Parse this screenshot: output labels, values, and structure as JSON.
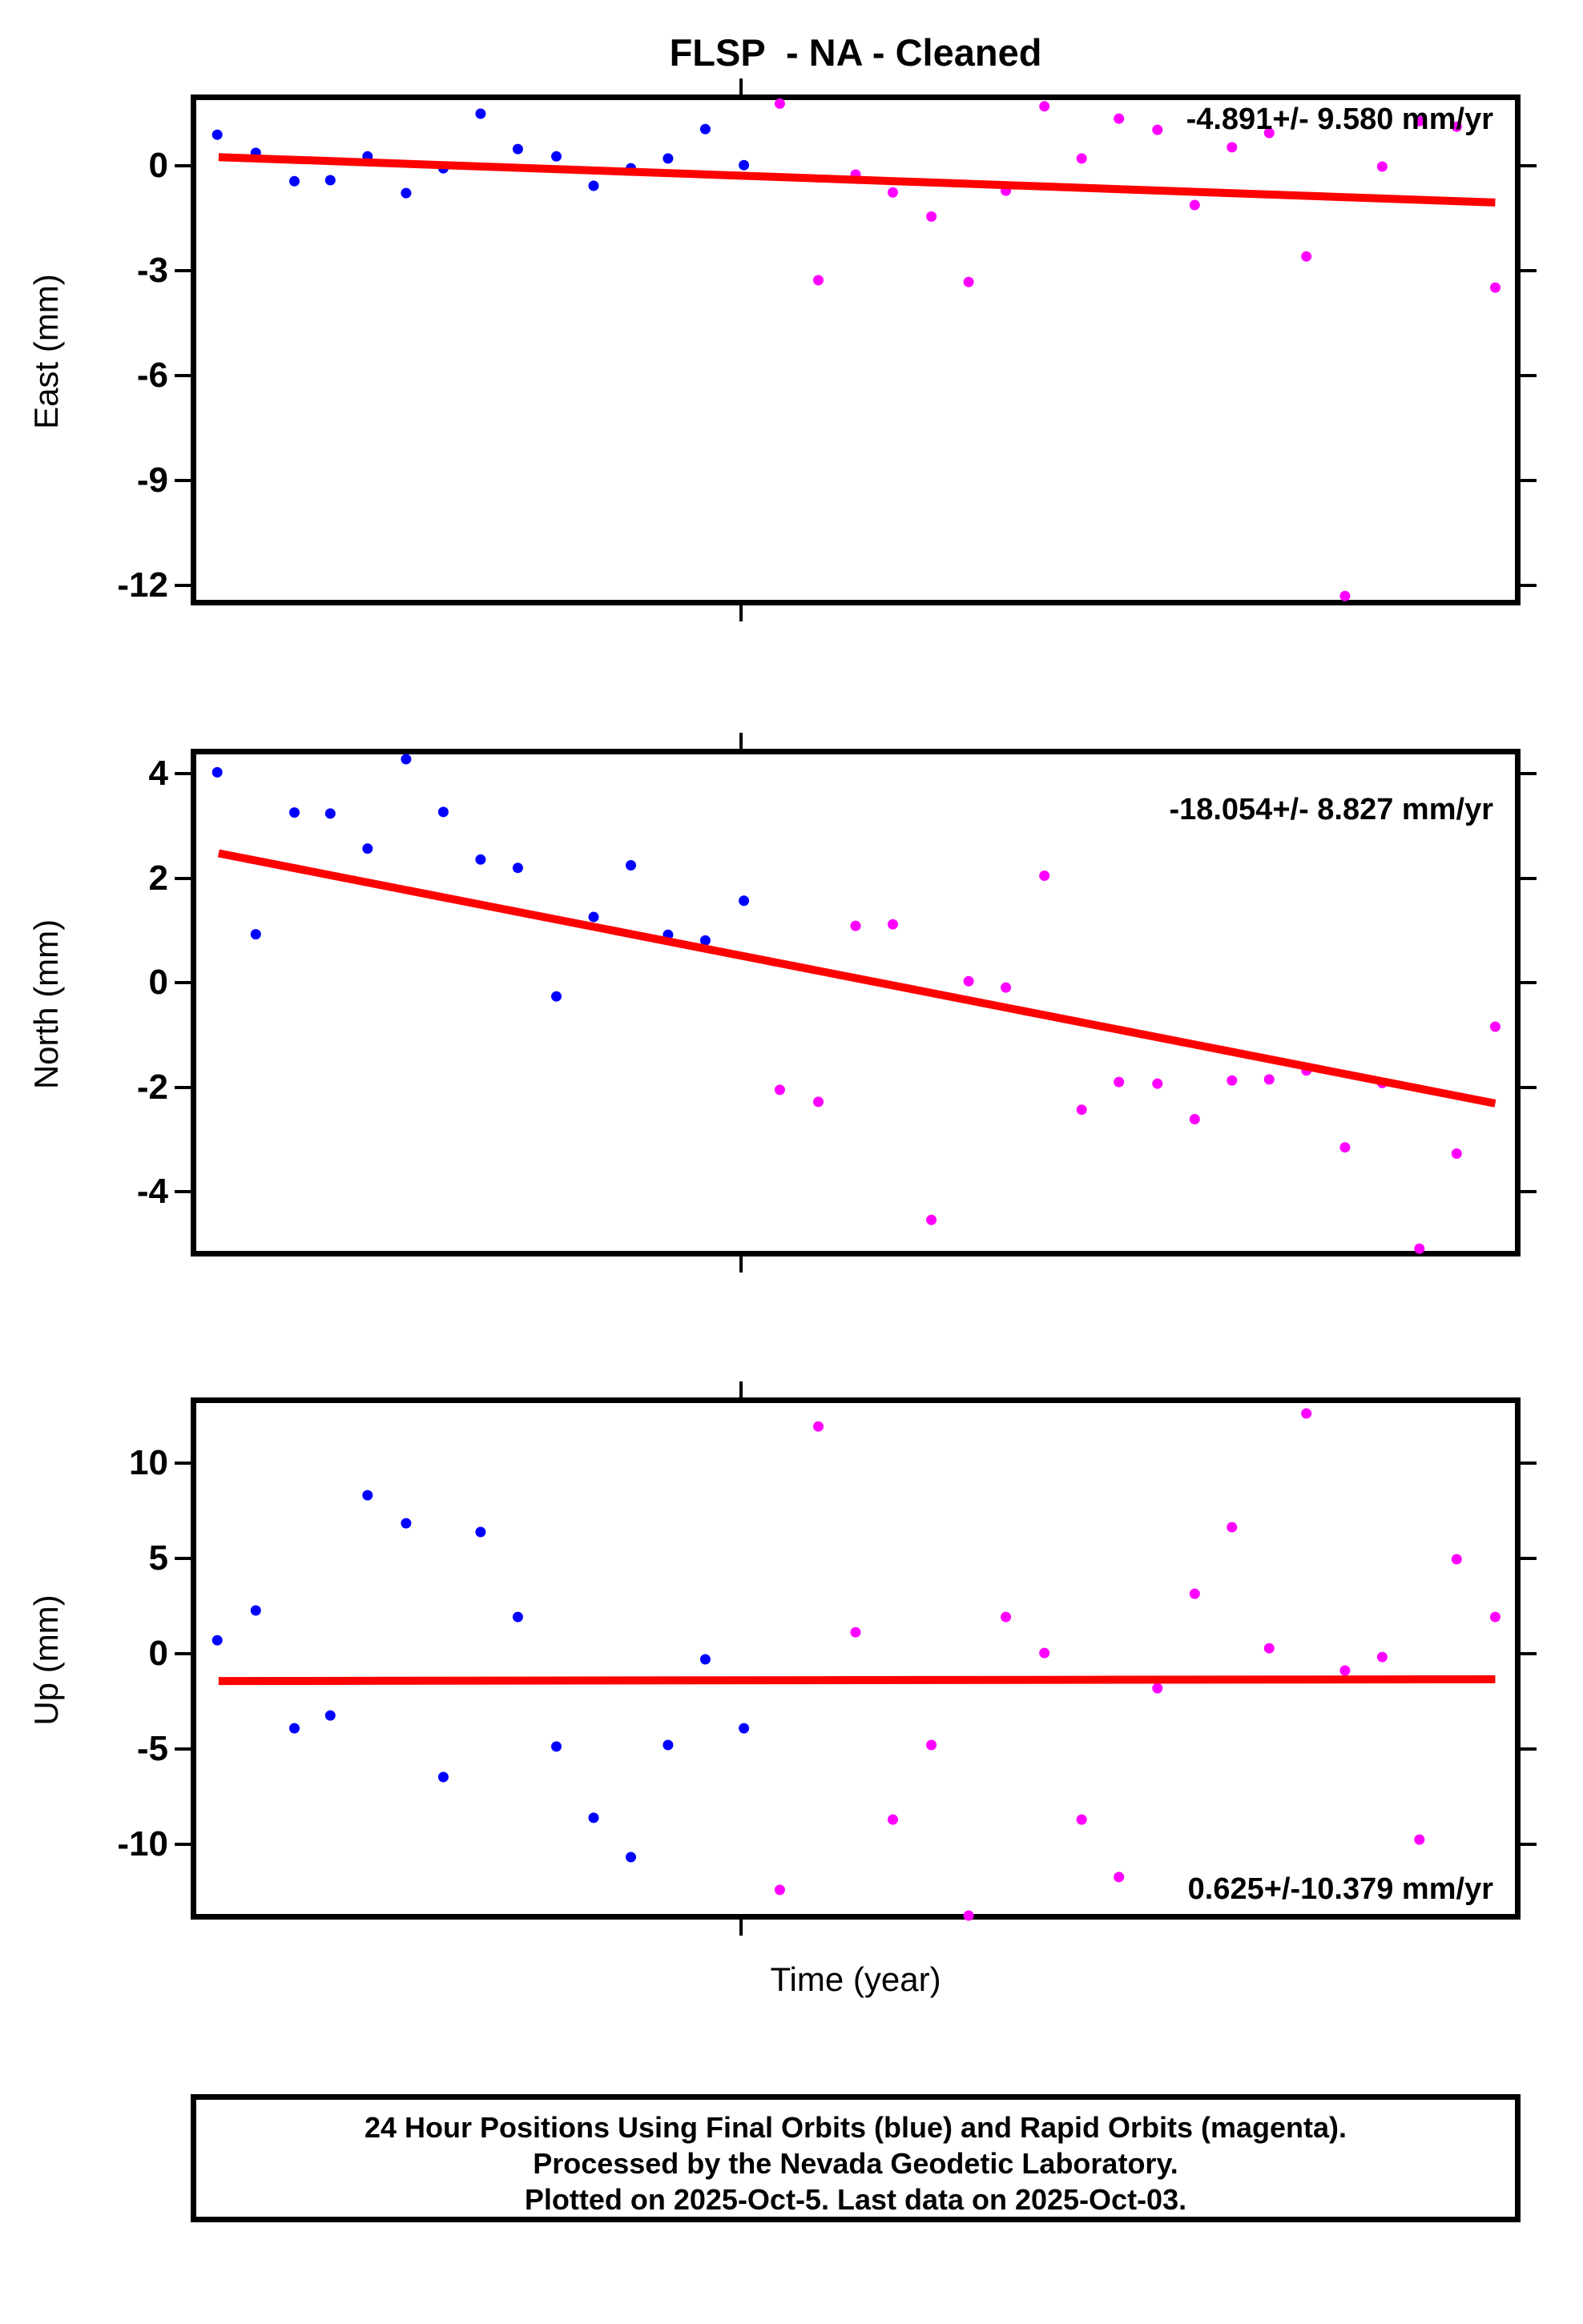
{
  "title": "FLSP  - NA - Cleaned",
  "xlabel": "Time (year)",
  "colors": {
    "final_orbits": "#0000ff",
    "rapid_orbits": "#ff00ff",
    "trend": "#ff0000",
    "frame": "#000000"
  },
  "legend_note": "Final Orbits are blue points, Rapid Orbits are magenta points, trend is red line",
  "caption": [
    "24 Hour Positions Using Final Orbits (blue) and Rapid Orbits (magenta).",
    "Processed by the Nevada Geodetic Laboratory.",
    "Plotted on 2025-Oct-5. Last data on 2025-Oct-03."
  ],
  "x_axis": {
    "label": "Time (year)",
    "tick_fraction": 0.414,
    "tick_labels_shown": false
  },
  "chart_data": [
    {
      "type": "scatter",
      "name": "east",
      "ylabel": "East (mm)",
      "ylim": [
        -12.57,
        2.04
      ],
      "yticks": [
        0,
        -3,
        -6,
        -9,
        -12
      ],
      "annotation": "-4.891+/- 9.580 mm/yr",
      "annotation_pos": "top-right",
      "trend": {
        "x": [
          0.021,
          0.981
        ],
        "y": [
          0.25,
          -1.05
        ]
      },
      "series": [
        {
          "name": "Final Orbits",
          "color_key": "final_orbits",
          "points": [
            [
              0.02,
              0.89
            ],
            [
              0.049,
              0.37
            ],
            [
              0.078,
              -0.44
            ],
            [
              0.105,
              -0.41
            ],
            [
              0.133,
              0.27
            ],
            [
              0.162,
              -0.78
            ],
            [
              0.19,
              -0.07
            ],
            [
              0.218,
              1.49
            ],
            [
              0.246,
              0.48
            ],
            [
              0.275,
              0.27
            ],
            [
              0.303,
              -0.57
            ],
            [
              0.331,
              -0.07
            ],
            [
              0.359,
              0.21
            ],
            [
              0.387,
              1.05
            ],
            [
              0.416,
              0.02
            ]
          ]
        },
        {
          "name": "Rapid Orbits",
          "color_key": "rapid_orbits",
          "points": [
            [
              0.443,
              1.78
            ],
            [
              0.472,
              -3.27
            ],
            [
              0.5,
              -0.25
            ],
            [
              0.528,
              -0.76
            ],
            [
              0.557,
              -1.45
            ],
            [
              0.585,
              -3.32
            ],
            [
              0.613,
              -0.71
            ],
            [
              0.642,
              1.7
            ],
            [
              0.67,
              0.21
            ],
            [
              0.698,
              1.35
            ],
            [
              0.727,
              1.03
            ],
            [
              0.755,
              -1.12
            ],
            [
              0.783,
              0.53
            ],
            [
              0.811,
              0.94
            ],
            [
              0.839,
              -2.59
            ],
            [
              0.868,
              -12.3
            ],
            [
              0.896,
              -0.02
            ],
            [
              0.924,
              1.28
            ],
            [
              0.952,
              1.12
            ],
            [
              0.981,
              -3.48
            ]
          ]
        }
      ]
    },
    {
      "type": "scatter",
      "name": "north",
      "ylabel": "North (mm)",
      "ylim": [
        -5.24,
        4.48
      ],
      "yticks": [
        4,
        2,
        0,
        -2,
        -4
      ],
      "annotation": "-18.054+/- 8.827 mm/yr",
      "annotation_pos": "top-right",
      "trend": {
        "x": [
          0.021,
          0.981
        ],
        "y": [
          2.48,
          -2.31
        ]
      },
      "series": [
        {
          "name": "Final Orbits",
          "color_key": "final_orbits",
          "points": [
            [
              0.02,
              4.03
            ],
            [
              0.049,
              0.93
            ],
            [
              0.078,
              3.26
            ],
            [
              0.105,
              3.24
            ],
            [
              0.133,
              2.57
            ],
            [
              0.162,
              4.28
            ],
            [
              0.19,
              3.27
            ],
            [
              0.218,
              2.36
            ],
            [
              0.246,
              2.2
            ],
            [
              0.275,
              -0.26
            ],
            [
              0.303,
              1.26
            ],
            [
              0.331,
              2.25
            ],
            [
              0.359,
              0.92
            ],
            [
              0.387,
              0.81
            ],
            [
              0.416,
              1.57
            ]
          ]
        },
        {
          "name": "Rapid Orbits",
          "color_key": "rapid_orbits",
          "points": [
            [
              0.443,
              -2.05
            ],
            [
              0.472,
              -2.28
            ],
            [
              0.5,
              1.09
            ],
            [
              0.528,
              1.12
            ],
            [
              0.557,
              -4.54
            ],
            [
              0.585,
              0.03
            ],
            [
              0.613,
              -0.09
            ],
            [
              0.642,
              2.05
            ],
            [
              0.67,
              -2.43
            ],
            [
              0.698,
              -1.9
            ],
            [
              0.727,
              -1.93
            ],
            [
              0.755,
              -2.61
            ],
            [
              0.783,
              -1.87
            ],
            [
              0.811,
              -1.85
            ],
            [
              0.839,
              -1.68
            ],
            [
              0.868,
              -3.15
            ],
            [
              0.896,
              -1.92
            ],
            [
              0.924,
              -5.09
            ],
            [
              0.952,
              -3.27
            ],
            [
              0.981,
              -0.84
            ]
          ]
        }
      ]
    },
    {
      "type": "scatter",
      "name": "up",
      "ylabel": "Up (mm)",
      "ylim": [
        -13.95,
        13.45
      ],
      "yticks": [
        10,
        5,
        0,
        -5,
        -10
      ],
      "annotation": "0.625+/-10.379 mm/yr",
      "annotation_pos": "bottom-right",
      "trend": {
        "x": [
          0.021,
          0.981
        ],
        "y": [
          -1.43,
          -1.34
        ]
      },
      "series": [
        {
          "name": "Final Orbits",
          "color_key": "final_orbits",
          "points": [
            [
              0.02,
              0.71
            ],
            [
              0.049,
              2.27
            ],
            [
              0.078,
              -3.91
            ],
            [
              0.105,
              -3.24
            ],
            [
              0.133,
              8.32
            ],
            [
              0.162,
              6.85
            ],
            [
              0.19,
              -6.47
            ],
            [
              0.218,
              6.39
            ],
            [
              0.246,
              1.93
            ],
            [
              0.275,
              -4.87
            ],
            [
              0.303,
              -8.61
            ],
            [
              0.331,
              -10.67
            ],
            [
              0.359,
              -4.79
            ],
            [
              0.387,
              -0.29
            ],
            [
              0.416,
              -3.91
            ]
          ]
        },
        {
          "name": "Rapid Orbits",
          "color_key": "rapid_orbits",
          "points": [
            [
              0.443,
              -12.39
            ],
            [
              0.472,
              11.93
            ],
            [
              0.5,
              1.13
            ],
            [
              0.528,
              -8.7
            ],
            [
              0.557,
              -4.79
            ],
            [
              0.585,
              -13.74
            ],
            [
              0.613,
              1.93
            ],
            [
              0.642,
              0.04
            ],
            [
              0.67,
              -8.7
            ],
            [
              0.698,
              -11.72
            ],
            [
              0.727,
              -1.81
            ],
            [
              0.755,
              3.15
            ],
            [
              0.783,
              6.64
            ],
            [
              0.811,
              0.29
            ],
            [
              0.839,
              12.61
            ],
            [
              0.868,
              -0.88
            ],
            [
              0.896,
              -0.17
            ],
            [
              0.924,
              -9.75
            ],
            [
              0.952,
              4.96
            ],
            [
              0.981,
              1.93
            ]
          ]
        }
      ]
    }
  ]
}
